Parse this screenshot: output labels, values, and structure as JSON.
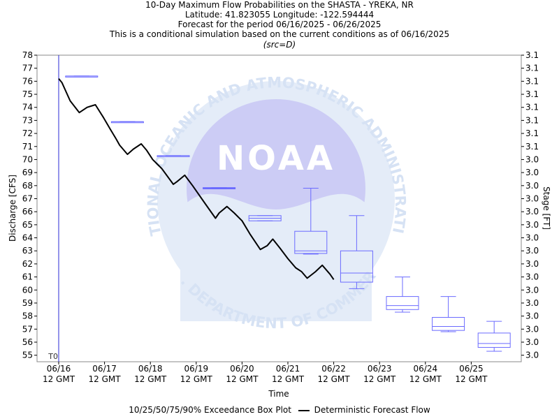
{
  "header": {
    "title": "10-Day Maximum Flow Probabilities on the SHASTA - YREKA, NR",
    "location": "Latitude: 41.823055 Longitude: -122.594444",
    "period": "Forecast for the period 06/16/2025 - 06/26/2025",
    "note": "This is a conditional simulation based on the current conditions as of 06/16/2025",
    "source": "(src=D)"
  },
  "legend": {
    "boxplot_label": "10/25/50/75/90% Exceedance Box Plot",
    "line_label": "Deterministic Forecast Flow"
  },
  "colors": {
    "box": "#6b6bff",
    "line": "#000000",
    "t0_line": "#2a2ad4",
    "watermark": "#dfe9f7"
  },
  "watermark": {
    "logo_text": "NOAA",
    "ring_top": "NATIONAL OCEANIC AND ATMOSPHERIC ADMINISTRATION",
    "ring_bottom": "U.S. DEPARTMENT OF COMMERCE"
  },
  "chart_data": {
    "type": "line",
    "xlabel": "Time",
    "ylabel": "Discharge [CFS]",
    "y2label": "Stage [FT]",
    "ylim": [
      54.5,
      78
    ],
    "y_ticks": [
      55,
      56,
      57,
      58,
      59,
      60,
      61,
      62,
      63,
      64,
      65,
      66,
      67,
      68,
      69,
      70,
      71,
      72,
      73,
      74,
      75,
      76,
      77,
      78
    ],
    "y2_ticks": [
      "3.0",
      "3.0",
      "3.0",
      "3.0",
      "3.0",
      "3.0",
      "3.0",
      "3.0",
      "3.0",
      "3.0",
      "3.0",
      "3.0",
      "3.0",
      "3.0",
      "3.0",
      "3.0",
      "3.1",
      "3.1",
      "3.1",
      "3.1",
      "3.1",
      "3.1",
      "3.1",
      "3.1"
    ],
    "x_ticks": [
      "06/16",
      "06/17",
      "06/18",
      "06/19",
      "06/20",
      "06/21",
      "06/22",
      "06/23",
      "06/24",
      "06/25"
    ],
    "x_tick_sub": "12 GMT",
    "t0_label": "T0",
    "t0_day": 0,
    "grid": false,
    "legend_position": "bottom",
    "deterministic": {
      "name": "Deterministic Forecast Flow",
      "day": [
        0,
        0.07,
        0.25,
        0.45,
        0.62,
        0.8,
        0.98,
        1.13,
        1.25,
        1.33,
        1.5,
        1.63,
        1.8,
        1.92,
        2.05,
        2.25,
        2.5,
        2.58,
        2.75,
        2.92,
        3.2,
        3.42,
        3.5,
        3.67,
        3.83,
        4.0,
        4.17,
        4.4,
        4.55,
        4.67,
        4.83,
        5.0,
        5.17,
        5.3,
        5.42,
        5.6,
        5.75,
        5.92,
        6.0
      ],
      "flow": [
        76.2,
        75.9,
        74.5,
        73.6,
        74.0,
        74.2,
        73.2,
        72.3,
        71.6,
        71.1,
        70.4,
        70.8,
        71.2,
        70.7,
        70.0,
        69.3,
        68.1,
        68.3,
        68.8,
        68.0,
        66.6,
        65.5,
        65.9,
        66.4,
        65.9,
        65.3,
        64.3,
        63.1,
        63.4,
        63.9,
        63.2,
        62.4,
        61.7,
        61.4,
        60.9,
        61.4,
        61.9,
        61.2,
        60.8
      ]
    },
    "boxplots": [
      {
        "day": 0.5,
        "p10": 76.4,
        "p25": 76.4,
        "p50": 76.4,
        "p75": 76.4,
        "p90": 76.4
      },
      {
        "day": 1.5,
        "p10": 72.9,
        "p25": 72.9,
        "p50": 72.9,
        "p75": 72.9,
        "p90": 72.9
      },
      {
        "day": 2.5,
        "p10": 70.3,
        "p25": 70.3,
        "p50": 70.3,
        "p75": 70.3,
        "p90": 70.3
      },
      {
        "day": 3.5,
        "p10": 67.75,
        "p25": 67.75,
        "p50": 67.8,
        "p75": 67.85,
        "p90": 67.85
      },
      {
        "day": 4.5,
        "p10": 65.3,
        "p25": 65.3,
        "p50": 65.5,
        "p75": 65.7,
        "p90": 65.7
      },
      {
        "day": 5.5,
        "p10": 62.75,
        "p25": 62.8,
        "p50": 63.0,
        "p75": 64.5,
        "p90": 67.8
      },
      {
        "day": 6.5,
        "p10": 60.1,
        "p25": 60.6,
        "p50": 61.3,
        "p75": 63.0,
        "p90": 65.7
      },
      {
        "day": 7.5,
        "p10": 58.3,
        "p25": 58.5,
        "p50": 58.8,
        "p75": 59.5,
        "p90": 61.0
      },
      {
        "day": 8.5,
        "p10": 56.8,
        "p25": 56.9,
        "p50": 57.2,
        "p75": 57.9,
        "p90": 59.5
      },
      {
        "day": 9.5,
        "p10": 55.3,
        "p25": 55.6,
        "p50": 55.9,
        "p75": 56.7,
        "p90": 57.6
      }
    ]
  }
}
